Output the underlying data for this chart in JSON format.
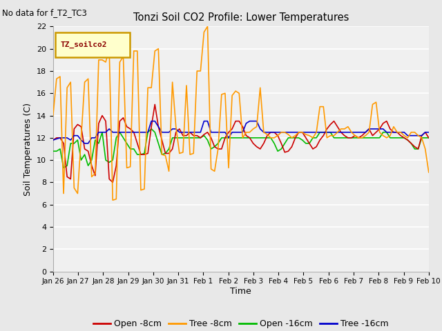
{
  "title": "Tonzi Soil CO2 Profile: Lower Temperatures",
  "no_data_text": "No data for f_T2_TC3",
  "ylabel": "Soil Temperatures (C)",
  "xlabel": "Time",
  "ylim": [
    0,
    22
  ],
  "yticks": [
    0,
    2,
    4,
    6,
    8,
    10,
    12,
    14,
    16,
    18,
    20,
    22
  ],
  "xlabels": [
    "Jan 26",
    "Jan 27",
    "Jan 28",
    "Jan 29",
    "Jan 30",
    "Jan 31",
    "Feb 1",
    "Feb 2",
    "Feb 3",
    "Feb 4",
    "Feb 5",
    "Feb 6",
    "Feb 7",
    "Feb 8",
    "Feb 9",
    "Feb 10"
  ],
  "legend_label": "TZ_soilco2",
  "legend_bbox_facecolor": "#ffffcc",
  "legend_bbox_edgecolor": "#cc9900",
  "series_labels": [
    "Open -8cm",
    "Tree -8cm",
    "Open -16cm",
    "Tree -16cm"
  ],
  "series_colors": [
    "#cc0000",
    "#ff9900",
    "#00bb00",
    "#0000cc"
  ],
  "plot_bg_color": "#f0f0f0",
  "fig_bg_color": "#e8e8e8",
  "open8": [
    11.8,
    12.0,
    12.0,
    11.5,
    8.5,
    8.3,
    12.8,
    13.2,
    13.0,
    11.0,
    10.8,
    9.5,
    8.6,
    13.3,
    14.0,
    13.5,
    8.3,
    8.0,
    9.5,
    13.5,
    13.8,
    13.0,
    12.8,
    12.5,
    11.5,
    10.5,
    10.5,
    10.6,
    13.0,
    15.0,
    13.0,
    11.8,
    10.6,
    10.6,
    11.0,
    12.5,
    12.8,
    12.2,
    12.2,
    12.5,
    12.2,
    12.2,
    12.0,
    12.3,
    12.5,
    12.0,
    11.2,
    11.0,
    11.0,
    12.0,
    12.5,
    12.8,
    13.5,
    13.5,
    13.0,
    12.2,
    12.0,
    11.5,
    11.2,
    11.0,
    11.5,
    12.2,
    12.5,
    12.5,
    12.2,
    11.5,
    10.7,
    10.8,
    11.2,
    12.0,
    12.5,
    12.5,
    12.0,
    11.5,
    11.0,
    11.2,
    11.8,
    12.2,
    12.8,
    13.2,
    13.5,
    13.0,
    12.5,
    12.2,
    12.0,
    12.0,
    12.2,
    12.0,
    12.2,
    12.5,
    12.8,
    12.2,
    12.5,
    12.8,
    13.3,
    13.5,
    12.8,
    12.5,
    12.5,
    12.2,
    12.0,
    11.8,
    11.5,
    11.2,
    11.0,
    12.2,
    12.5,
    12.0
  ],
  "tree8": [
    14.0,
    17.3,
    17.5,
    7.0,
    16.5,
    17.0,
    7.5,
    7.0,
    12.0,
    17.0,
    17.3,
    8.5,
    8.8,
    19.0,
    19.0,
    18.8,
    20.0,
    6.4,
    6.5,
    18.8,
    19.3,
    9.3,
    9.4,
    19.8,
    19.8,
    7.3,
    7.4,
    16.5,
    16.5,
    19.8,
    20.0,
    10.5,
    10.4,
    9.0,
    17.0,
    13.0,
    10.6,
    10.7,
    16.7,
    10.5,
    10.6,
    18.0,
    18.0,
    21.5,
    22.0,
    9.2,
    9.0,
    11.0,
    15.9,
    16.0,
    9.3,
    15.8,
    16.2,
    16.0,
    12.0,
    12.5,
    12.5,
    12.8,
    13.0,
    16.5,
    12.5,
    12.3,
    12.0,
    12.0,
    12.2,
    12.5,
    12.5,
    12.3,
    12.0,
    12.2,
    12.5,
    12.5,
    12.3,
    12.2,
    12.0,
    12.5,
    14.8,
    14.8,
    12.0,
    12.2,
    12.2,
    12.5,
    12.8,
    12.8,
    13.0,
    12.5,
    12.2,
    12.0,
    12.0,
    12.2,
    12.5,
    15.0,
    15.2,
    12.5,
    12.2,
    12.0,
    12.2,
    13.0,
    12.5,
    12.5,
    12.2,
    12.0,
    12.5,
    12.5,
    12.2,
    12.0,
    11.0,
    8.9
  ],
  "open16": [
    10.8,
    10.8,
    11.0,
    9.3,
    9.5,
    11.5,
    11.5,
    11.8,
    10.0,
    10.5,
    9.5,
    10.0,
    11.8,
    11.5,
    12.5,
    10.0,
    9.8,
    10.0,
    12.0,
    12.5,
    12.0,
    11.5,
    11.0,
    11.0,
    10.5,
    10.5,
    10.6,
    12.5,
    12.8,
    12.5,
    11.5,
    10.5,
    10.6,
    11.0,
    12.0,
    12.0,
    12.0,
    12.0,
    12.0,
    12.0,
    12.0,
    12.0,
    12.0,
    12.2,
    11.8,
    11.0,
    11.2,
    11.5,
    12.0,
    12.0,
    12.0,
    12.0,
    12.0,
    12.0,
    12.0,
    12.0,
    12.0,
    12.0,
    12.0,
    12.0,
    12.0,
    12.0,
    12.0,
    11.5,
    10.8,
    11.0,
    11.5,
    12.0,
    12.0,
    12.0,
    12.0,
    11.8,
    11.5,
    11.5,
    12.0,
    12.0,
    12.5,
    12.5,
    12.5,
    12.5,
    12.0,
    12.0,
    12.0,
    12.0,
    12.0,
    12.0,
    12.0,
    12.0,
    12.0,
    12.0,
    12.0,
    12.0,
    12.0,
    12.0,
    12.5,
    12.5,
    12.0,
    12.0,
    12.0,
    12.0,
    12.0,
    11.8,
    11.5,
    11.0,
    11.0,
    12.0,
    12.0,
    12.0
  ],
  "tree16": [
    11.8,
    11.9,
    12.0,
    12.0,
    12.0,
    11.8,
    12.2,
    12.2,
    11.8,
    11.5,
    11.5,
    12.0,
    12.0,
    12.5,
    12.5,
    12.5,
    12.8,
    12.5,
    12.5,
    12.5,
    12.5,
    12.5,
    12.5,
    12.5,
    12.5,
    12.5,
    12.5,
    12.5,
    13.5,
    13.5,
    13.0,
    12.5,
    12.5,
    12.5,
    12.8,
    12.8,
    12.5,
    12.5,
    12.5,
    12.5,
    12.5,
    12.5,
    12.5,
    13.5,
    13.5,
    12.5,
    12.5,
    12.5,
    12.5,
    12.5,
    12.0,
    12.5,
    12.5,
    12.5,
    12.5,
    13.3,
    13.5,
    13.5,
    13.5,
    12.8,
    12.5,
    12.5,
    12.5,
    12.5,
    12.5,
    12.5,
    12.5,
    12.5,
    12.5,
    12.5,
    12.5,
    12.5,
    12.5,
    12.5,
    12.5,
    12.5,
    12.5,
    12.5,
    12.5,
    12.5,
    12.5,
    12.5,
    12.5,
    12.5,
    12.5,
    12.5,
    12.5,
    12.5,
    12.5,
    12.5,
    12.8,
    12.8,
    12.8,
    12.8,
    12.8,
    12.5,
    12.5,
    12.5,
    12.5,
    12.5,
    12.5,
    12.2,
    12.2,
    12.2,
    12.2,
    12.2,
    12.5,
    12.5
  ]
}
